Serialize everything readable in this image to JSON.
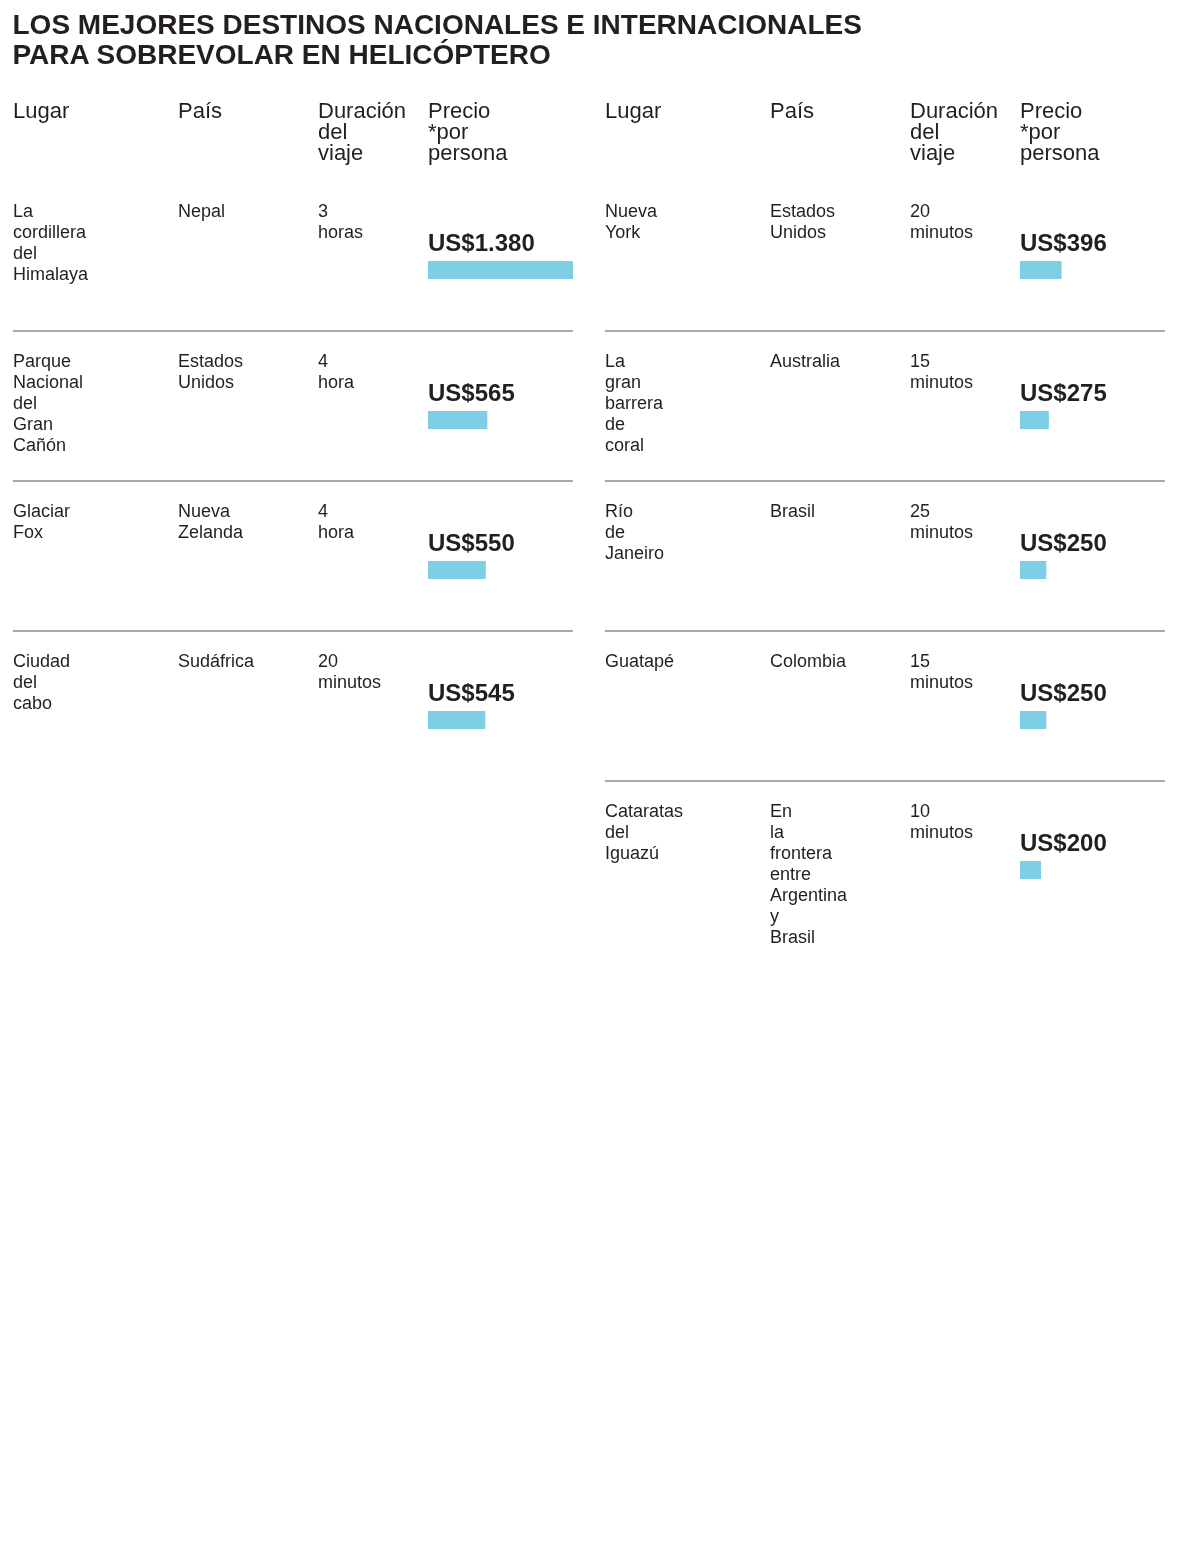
{
  "chart_data": [
    {
      "type": "bar",
      "orientation": "horizontal",
      "title": "LOS MEJORES DESTINOS NACIONALES E INTERNACIONALES PARA SOBREVOLAR EN HELICÓPTERO",
      "ylabel": "Lugar",
      "xlabel": "Precio *por persona",
      "color": "#7ecfe6",
      "xlim": [
        0,
        1380
      ],
      "categories": [
        "La cordillera del Himalaya",
        "Parque Nacional del Gran Cañón",
        "Glaciar Fox",
        "Ciudad del cabo"
      ],
      "values": [
        1380,
        565,
        550,
        545
      ],
      "value_labels": [
        "US$1.380",
        "US$565",
        "US$550",
        "US$545"
      ],
      "annotations": [
        "País",
        "Duración del viaje",
        "Nepal",
        "3 horas",
        "Estados Unidos",
        "4 hora",
        "Nueva Zelanda",
        "4 hora",
        "Sudáfrica",
        "20 minutos"
      ]
    },
    {
      "type": "bar",
      "orientation": "horizontal",
      "ylabel": "Lugar",
      "xlabel": "Precio *por persona",
      "color": "#7ecfe6",
      "xlim": [
        0,
        1380
      ],
      "categories": [
        "Nueva York",
        "La gran barrera de coral",
        "Río de Janeiro",
        "Guatapé",
        "Cataratas del Iguazú"
      ],
      "values": [
        396,
        275,
        250,
        250,
        200
      ],
      "value_labels": [
        "US$396",
        "US$275",
        "US$250",
        "US$250",
        "US$200"
      ],
      "annotations": [
        "País",
        "Duración del viaje",
        "Estados Unidos",
        "20 minutos",
        "Australia",
        "15 minutos",
        "Brasil",
        "25 minutos",
        "Colombia",
        "15 minutos",
        "En la frontera entre Argentina y Brasil",
        "10 minutos"
      ]
    }
  ]
}
